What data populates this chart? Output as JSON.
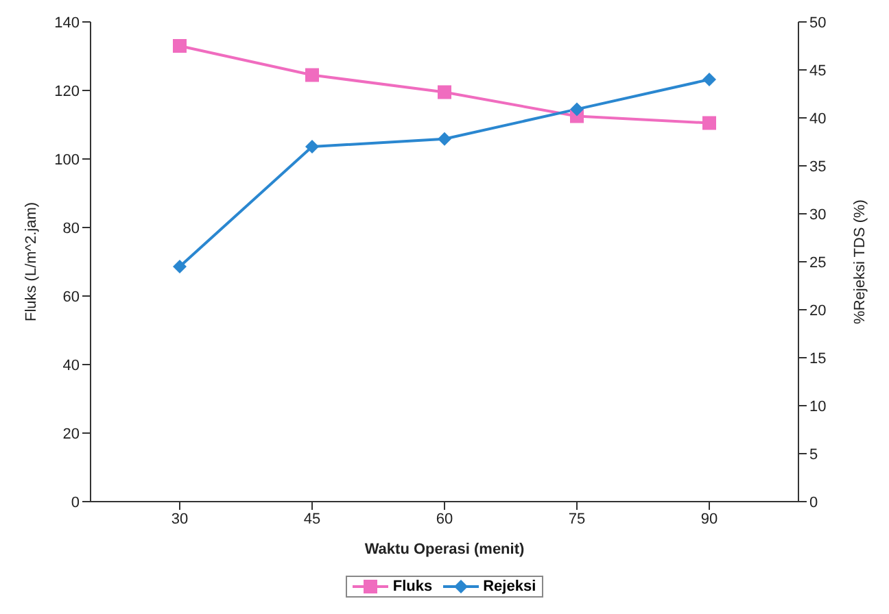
{
  "chart_data": {
    "type": "line",
    "xlabel": "Waktu Operasi (menit)",
    "ylabel": "Fluks (L/m^2.jam)",
    "y2label": "%Rejeksi TDS (%)",
    "categories": [
      "30",
      "45",
      "60",
      "75",
      "90"
    ],
    "series": [
      {
        "name": "Fluks",
        "color": "#f06cbf",
        "marker": "square",
        "values": [
          133,
          124.5,
          119.5,
          112.5,
          110.5
        ]
      },
      {
        "name": "Rejeksi",
        "color": "#2a87d0",
        "marker": "diamond",
        "axis": "y2",
        "values": [
          24.5,
          37,
          37.8,
          40.9,
          44
        ]
      }
    ],
    "ylim": [
      0,
      140
    ],
    "yticks": [
      0,
      20,
      40,
      60,
      80,
      100,
      120,
      140
    ],
    "y2lim": [
      0,
      50
    ],
    "y2ticks": [
      0,
      5,
      10,
      15,
      20,
      25,
      30,
      35,
      40,
      45,
      50
    ],
    "legend": "bottom",
    "line_style": "solid"
  }
}
